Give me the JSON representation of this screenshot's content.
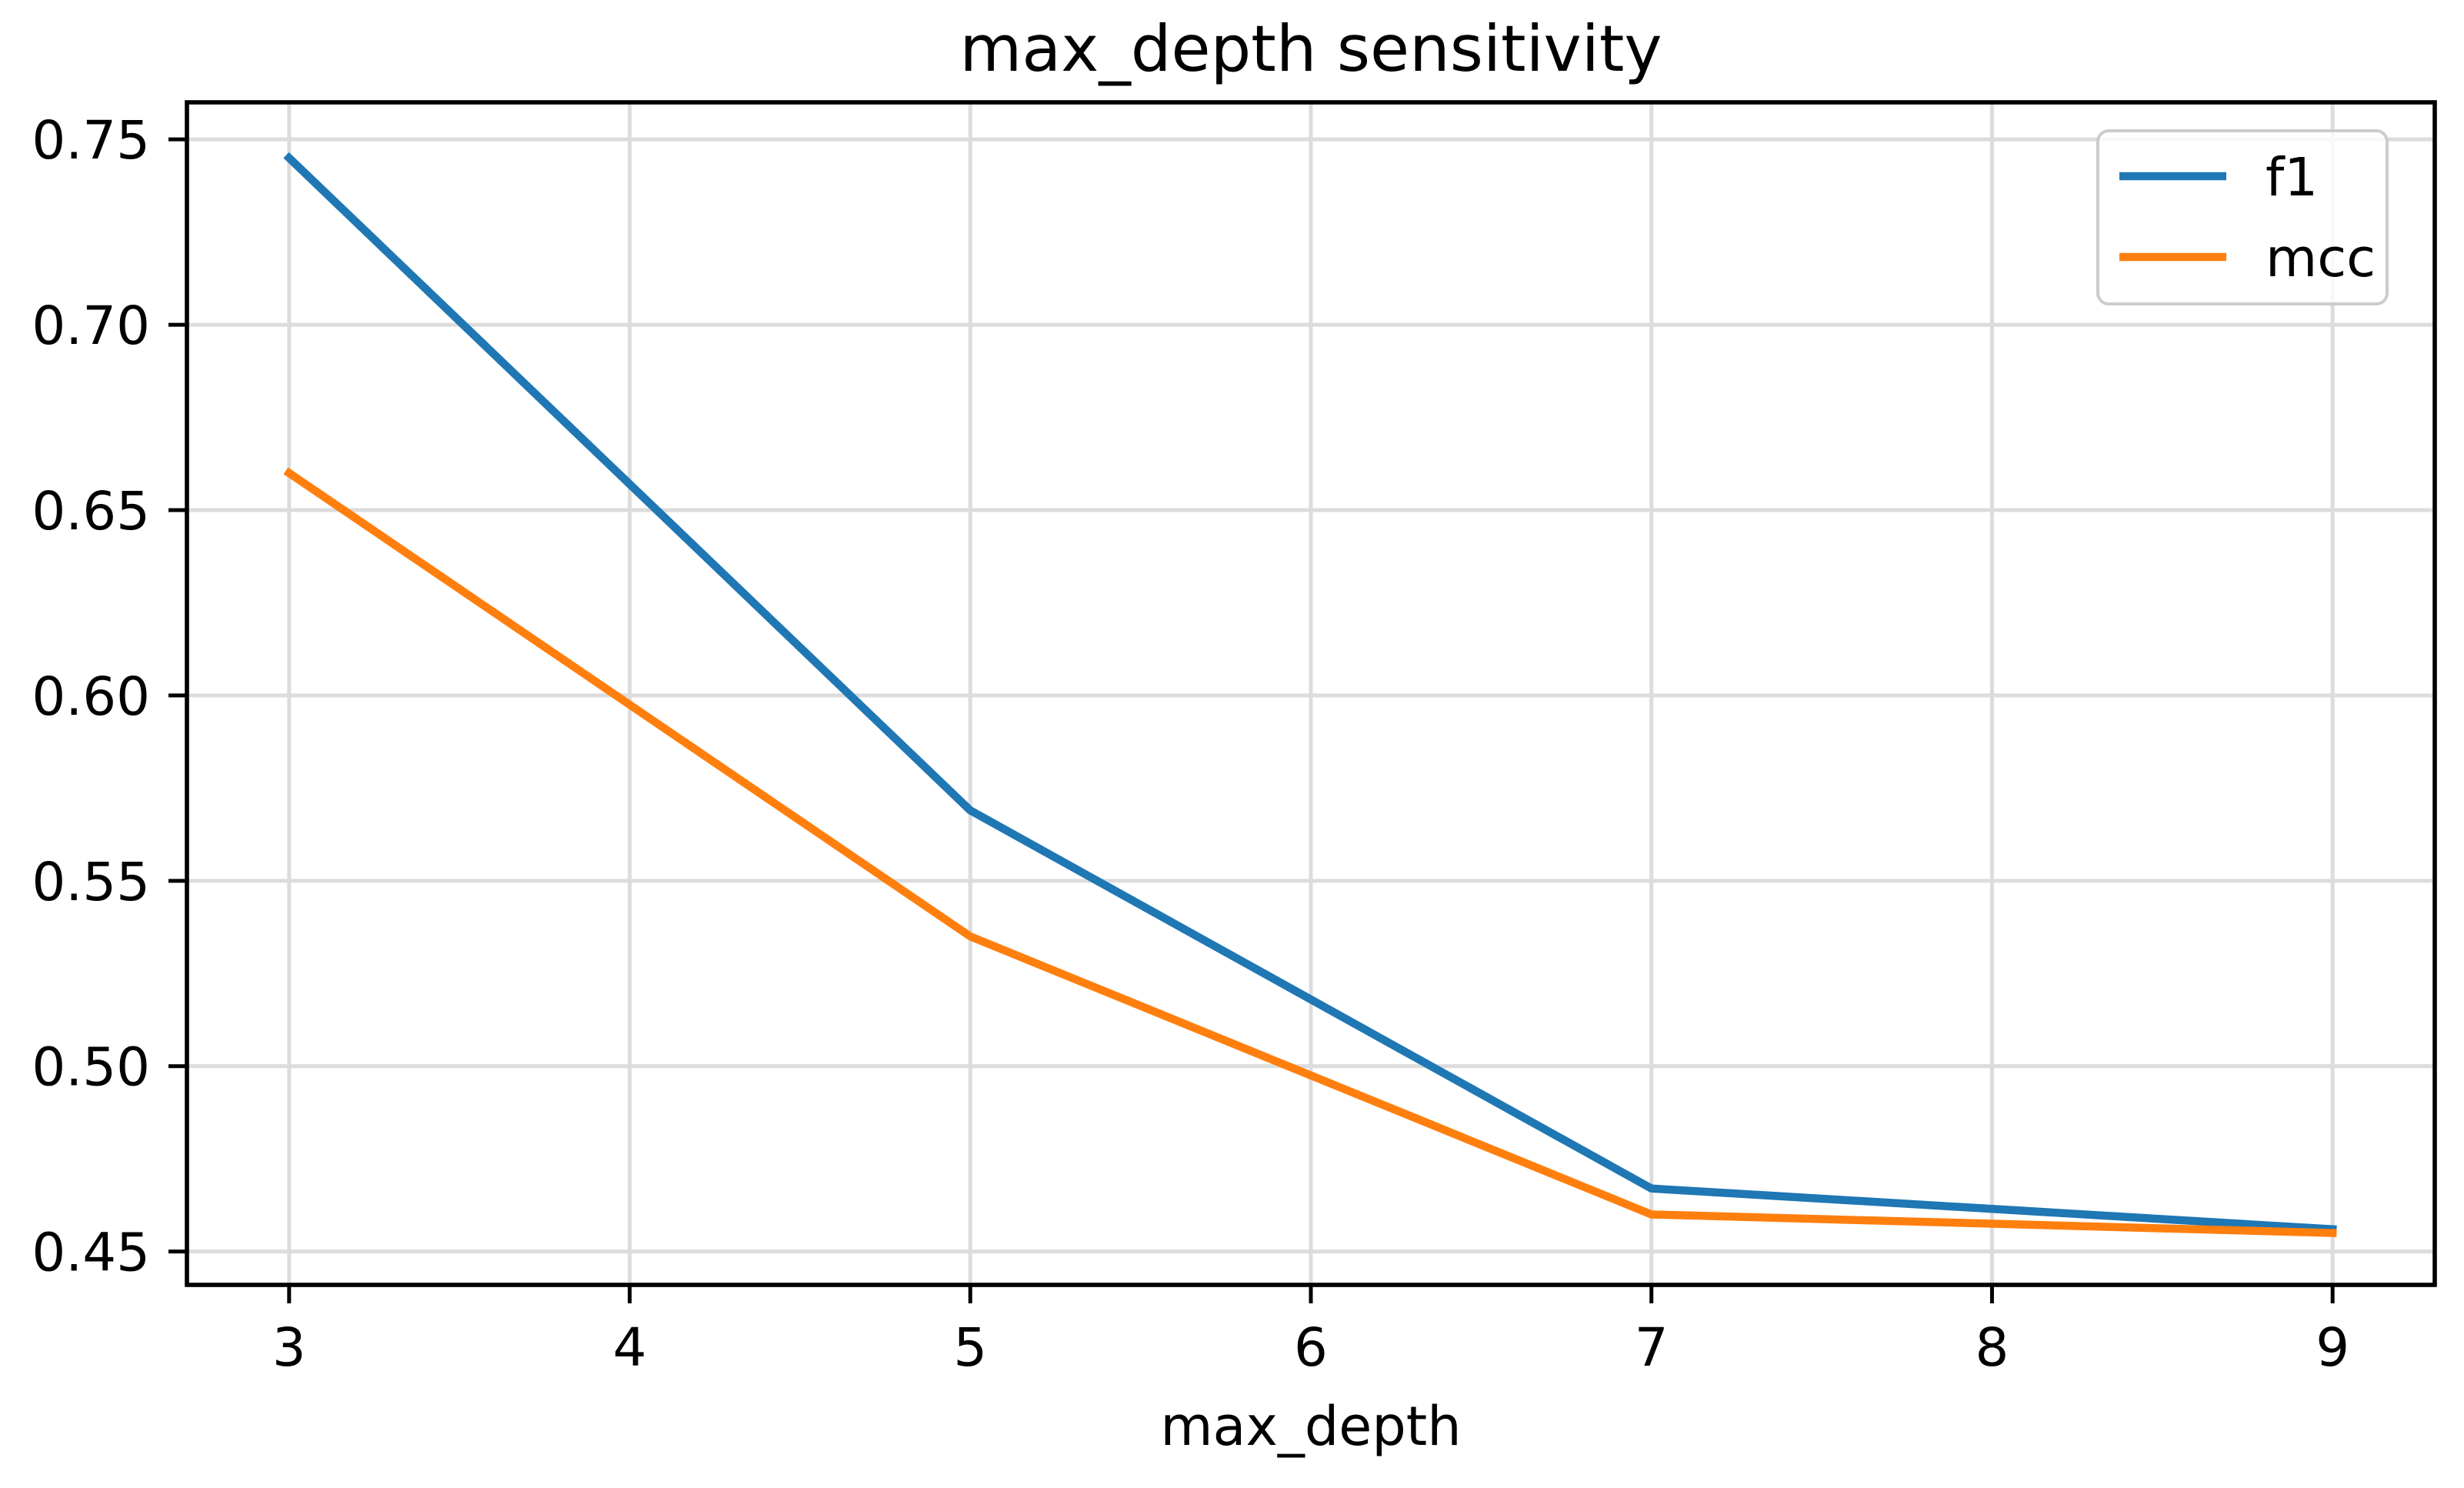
{
  "chart_data": {
    "type": "line",
    "title": "max_depth sensitivity",
    "xlabel": "max_depth",
    "ylabel": "",
    "x": [
      3,
      5,
      7,
      9
    ],
    "series": [
      {
        "name": "f1",
        "color": "#1f77b4",
        "values": [
          0.745,
          0.569,
          0.467,
          0.456
        ]
      },
      {
        "name": "mcc",
        "color": "#ff7f0e",
        "values": [
          0.66,
          0.535,
          0.46,
          0.455
        ]
      }
    ],
    "xticks": [
      3,
      4,
      5,
      6,
      7,
      8,
      9
    ],
    "yticks": [
      0.45,
      0.5,
      0.55,
      0.6,
      0.65,
      0.7,
      0.75
    ],
    "xlim": [
      2.7,
      9.3
    ],
    "ylim": [
      0.441,
      0.76
    ],
    "grid": true,
    "legend": {
      "position": "upper right",
      "entries": [
        "f1",
        "mcc"
      ]
    },
    "colors": {
      "f1": "#1f77b4",
      "mcc": "#ff7f0e",
      "grid": "#dcdcdc",
      "spine": "#000000",
      "legend_border": "#cccccc",
      "background": "#ffffff"
    }
  }
}
